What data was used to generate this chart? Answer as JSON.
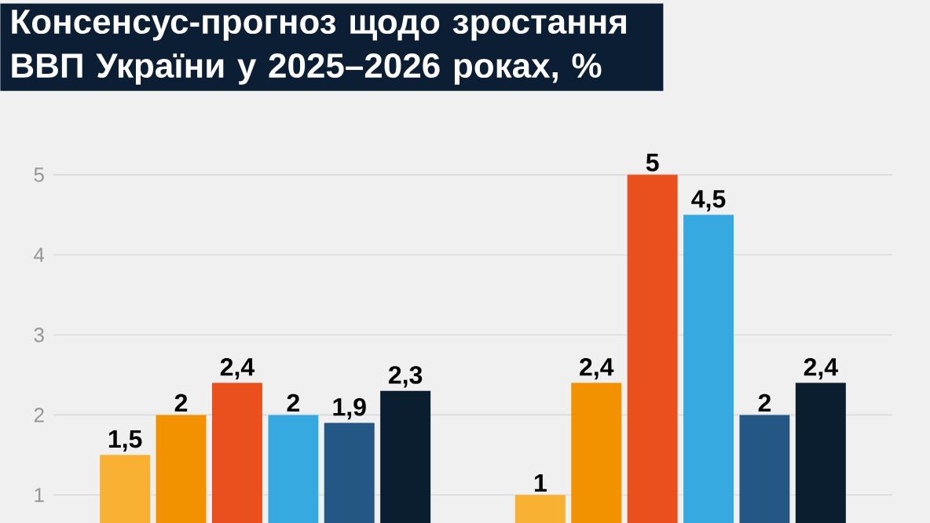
{
  "chart_data": {
    "type": "bar",
    "title": "Консенсус-прогноз щодо зростання ВВП України у 2025–2026 роках, %",
    "categories": [
      null,
      null
    ],
    "series": [
      {
        "color": "#f8b133",
        "values": [
          1.5,
          1
        ],
        "value_labels": [
          "1,5",
          "1"
        ]
      },
      {
        "color": "#f39200",
        "values": [
          2,
          2.4
        ],
        "value_labels": [
          "2",
          "2,4"
        ]
      },
      {
        "color": "#e9501e",
        "values": [
          2.4,
          5
        ],
        "value_labels": [
          "2,4",
          "5"
        ]
      },
      {
        "color": "#37a9e1",
        "values": [
          2,
          4.5
        ],
        "value_labels": [
          "2",
          "4,5"
        ]
      },
      {
        "color": "#245784",
        "values": [
          1.9,
          2
        ],
        "value_labels": [
          "1,9",
          "2"
        ]
      },
      {
        "color": "#0a1e2f",
        "values": [
          2.3,
          2.4
        ],
        "value_labels": [
          "2,3",
          "2,4"
        ]
      }
    ],
    "ylim": [
      0.65,
      5
    ],
    "yticks": [
      1,
      2,
      3,
      4,
      5
    ],
    "grid": "y",
    "tick_labels": "y"
  }
}
